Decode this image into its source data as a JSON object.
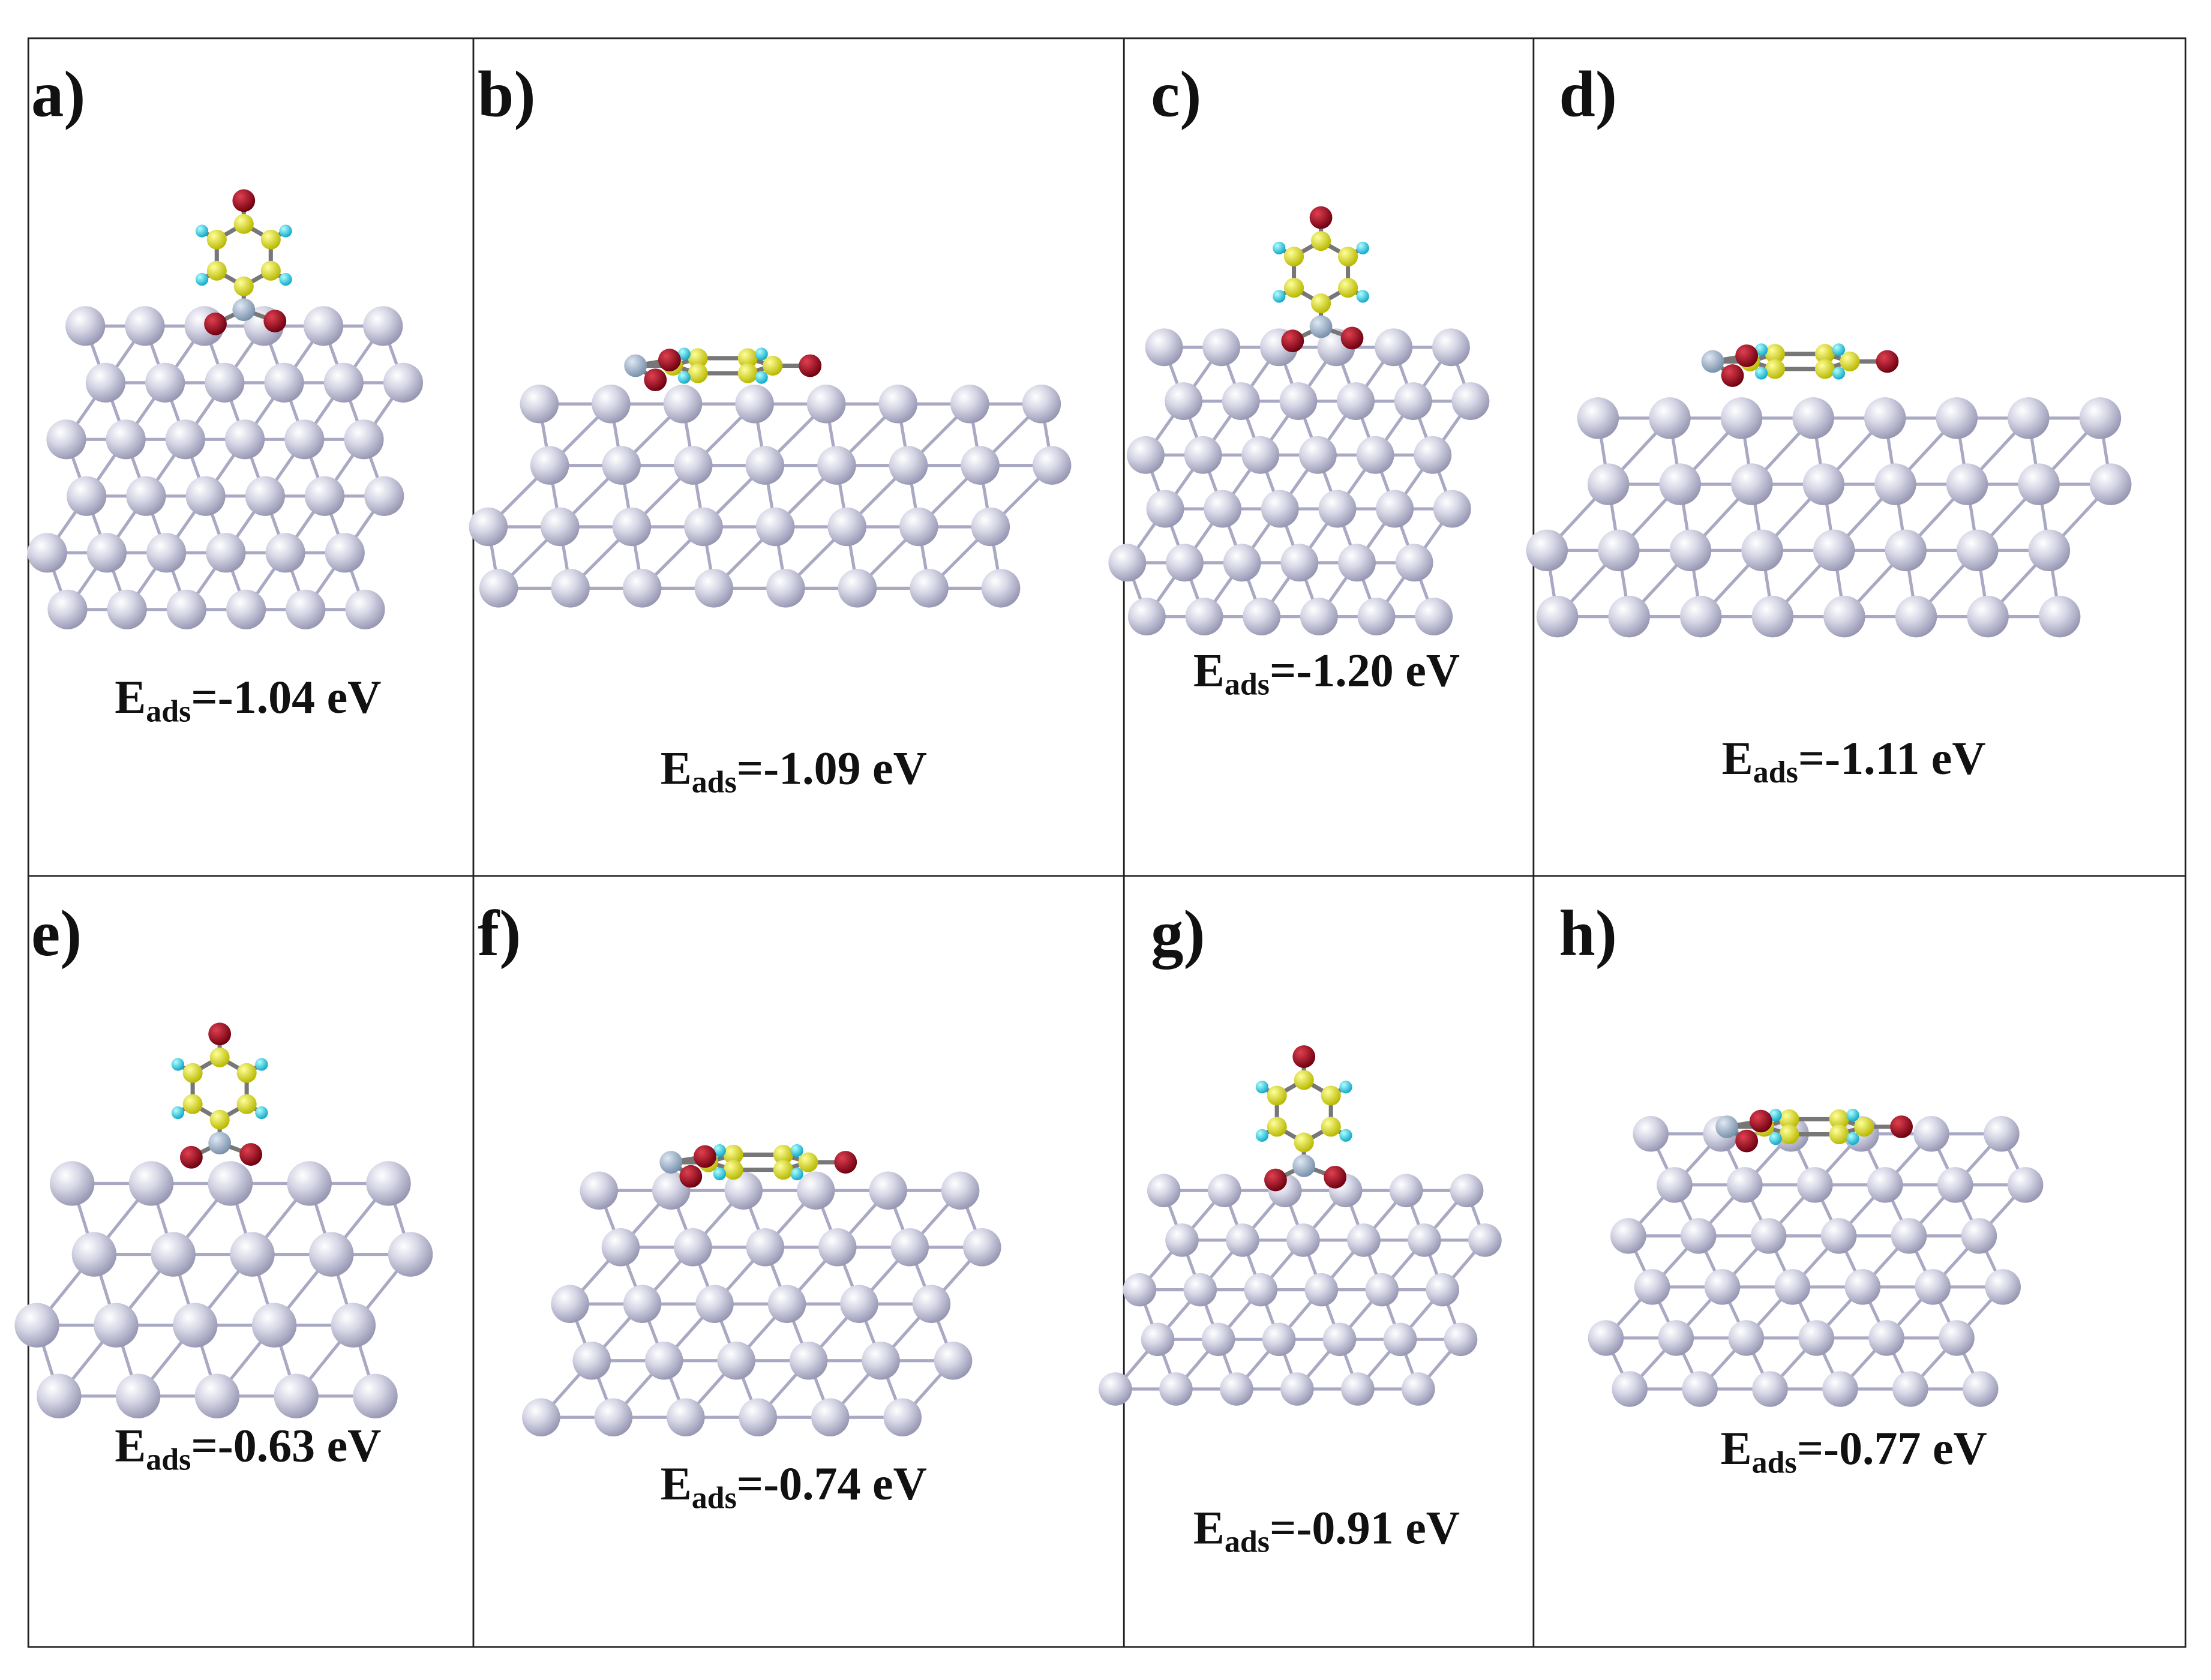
{
  "panels": [
    {
      "label": "a)",
      "energy_symbol": "E",
      "energy_subscript": "ads",
      "energy_value": "=-1.04 eV"
    },
    {
      "label": "b)",
      "energy_symbol": "E",
      "energy_subscript": "ads",
      "energy_value": "=-1.09 eV"
    },
    {
      "label": "c)",
      "energy_symbol": "E",
      "energy_subscript": "ads",
      "energy_value": "=-1.20 eV"
    },
    {
      "label": "d)",
      "energy_symbol": "E",
      "energy_subscript": "ads",
      "energy_value": "=-1.11 eV"
    },
    {
      "label": "e)",
      "energy_symbol": "E",
      "energy_subscript": "ads",
      "energy_value": "=-0.63 eV"
    },
    {
      "label": "f)",
      "energy_symbol": "E",
      "energy_subscript": "ads",
      "energy_value": "=-0.74 eV"
    },
    {
      "label": "g)",
      "energy_symbol": "E",
      "energy_subscript": "ads",
      "energy_value": "=-0.91 eV"
    },
    {
      "label": "h)",
      "energy_symbol": "E",
      "energy_subscript": "ads",
      "energy_value": "=-0.77 eV"
    }
  ]
}
